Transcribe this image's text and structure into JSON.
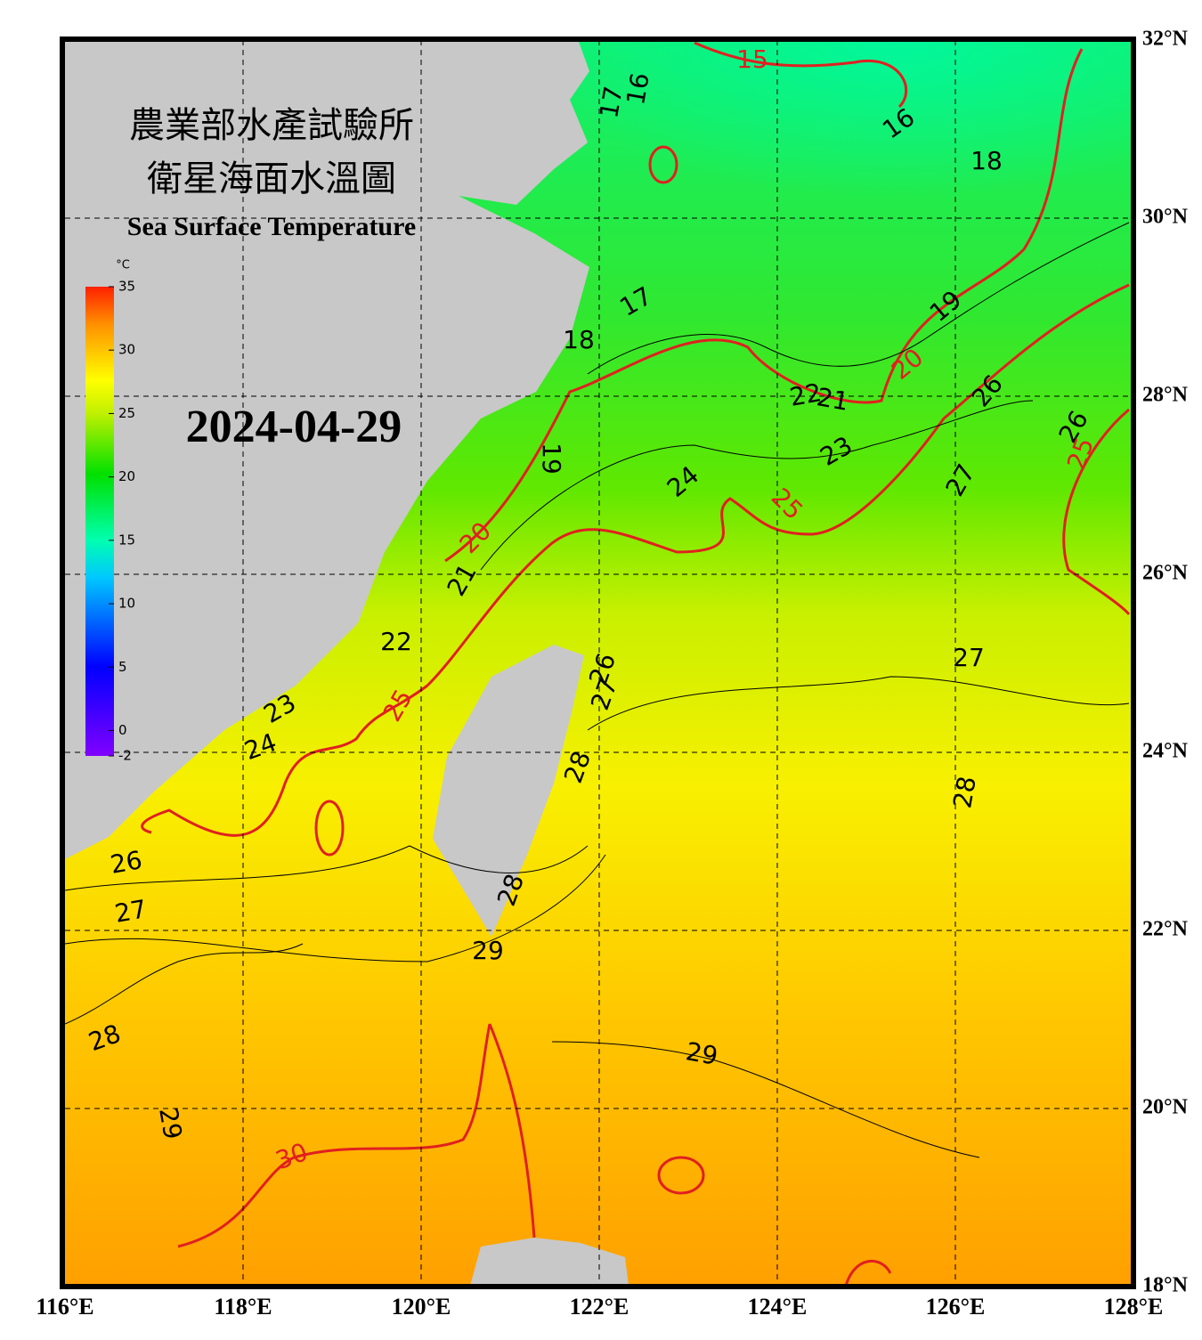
{
  "header": {
    "title_zh_1": "農業部水產試驗所",
    "title_zh_2": "衛星海面水溫圖",
    "title_en": "Sea Surface Temperature",
    "date": "2024-04-29"
  },
  "colorbar": {
    "unit": "°C",
    "range": [
      -2,
      35
    ],
    "ticks": [
      35,
      30,
      25,
      20,
      15,
      10,
      5,
      0,
      -2
    ]
  },
  "lon_ticks": [
    {
      "value": 116,
      "label": "116°E"
    },
    {
      "value": 118,
      "label": "118°E"
    },
    {
      "value": 120,
      "label": "120°E"
    },
    {
      "value": 122,
      "label": "122°E"
    },
    {
      "value": 124,
      "label": "124°E"
    },
    {
      "value": 126,
      "label": "126°E"
    },
    {
      "value": 128,
      "label": "128°E"
    }
  ],
  "lat_ticks": [
    {
      "value": 32,
      "label": "32°N"
    },
    {
      "value": 30,
      "label": "30°N"
    },
    {
      "value": 28,
      "label": "28°N"
    },
    {
      "value": 26,
      "label": "26°N"
    },
    {
      "value": 24,
      "label": "24°N"
    },
    {
      "value": 22,
      "label": "22°N"
    },
    {
      "value": 20,
      "label": "20°N"
    },
    {
      "value": 18,
      "label": "18°N"
    }
  ],
  "contour_labels": [
    15,
    16,
    17,
    16,
    18,
    17,
    19,
    18,
    20,
    22,
    21,
    26,
    26,
    19,
    25,
    23,
    24,
    25,
    27,
    20,
    21,
    22,
    25,
    23,
    24,
    26,
    27,
    28,
    27,
    28,
    26,
    27,
    28,
    29,
    28,
    29,
    29,
    30
  ]
}
